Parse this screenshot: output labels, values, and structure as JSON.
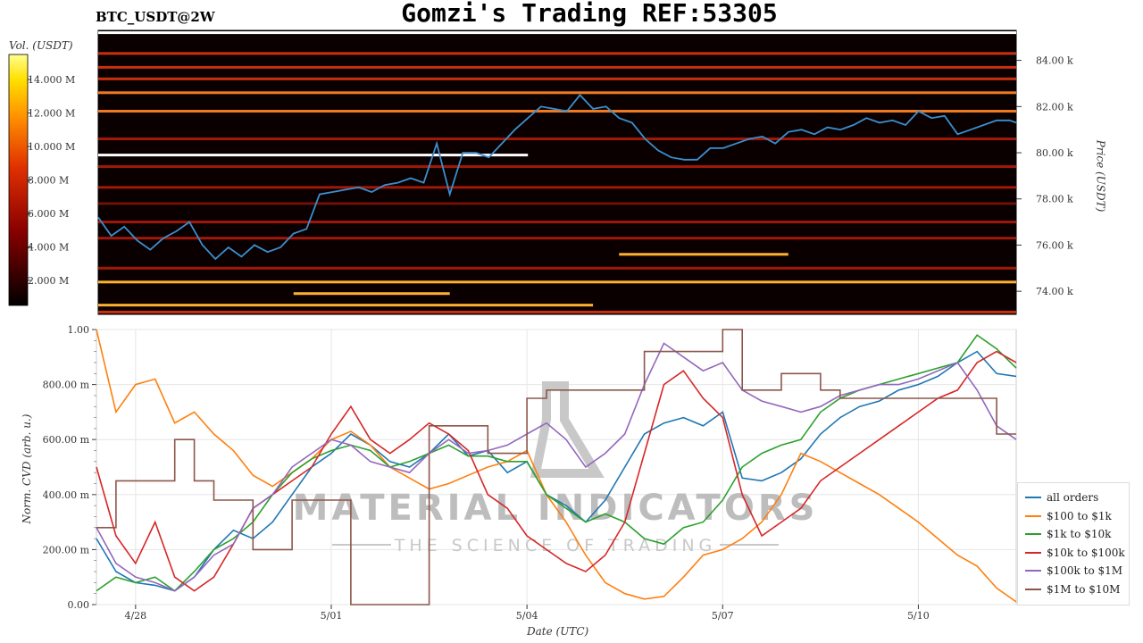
{
  "header": {
    "title": "Gomzi's Trading REF:53305",
    "symbol": "BTC_USDT@2W"
  },
  "colors": {
    "all_orders": "#1f77b4",
    "r100_1k": "#ff7f0e",
    "r1k_10k": "#2ca02c",
    "r10k_100k": "#d62728",
    "r100k_1m": "#9467bd",
    "r1m_10m": "#8c564b",
    "heatmap_low": "#000000",
    "heatmap_high": "#ffff80",
    "price_line": "#3a8fd0"
  },
  "watermark": {
    "main": "MATERIAL INDICATORS",
    "sub": "THE SCIENCE OF TRADING"
  },
  "chart_data": [
    {
      "type": "heatmap",
      "colorbar": {
        "label": "Vol. (USDT)",
        "ticks": [
          "14.000 M",
          "12.000 M",
          "10.000 M",
          "8.000 M",
          "6.000 M",
          "4.000 M",
          "2.000 M"
        ],
        "tick_values": [
          14,
          12,
          10,
          8,
          6,
          4,
          2
        ],
        "range": [
          0.5,
          15.5
        ]
      },
      "y_axis": {
        "label": "Price (USDT)",
        "ticks": [
          "84.00 k",
          "82.00 k",
          "80.00 k",
          "78.00 k",
          "76.00 k",
          "74.00 k"
        ],
        "tick_values": [
          84000,
          82000,
          80000,
          78000,
          76000,
          74000
        ],
        "ylim": [
          73000,
          85300
        ]
      },
      "x_range": [
        0,
        14.1
      ],
      "price_series": {
        "x": [
          0,
          0.2,
          0.4,
          0.6,
          0.8,
          1.0,
          1.2,
          1.4,
          1.6,
          1.8,
          2.0,
          2.2,
          2.4,
          2.6,
          2.8,
          3.0,
          3.2,
          3.4,
          3.6,
          3.8,
          4.0,
          4.2,
          4.4,
          4.6,
          4.8,
          5.0,
          5.2,
          5.4,
          5.6,
          5.8,
          6.0,
          6.2,
          6.4,
          6.6,
          6.8,
          7.0,
          7.2,
          7.4,
          7.6,
          7.8,
          8.0,
          8.2,
          8.4,
          8.6,
          8.8,
          9.0,
          9.2,
          9.4,
          9.6,
          9.8,
          10.0,
          10.2,
          10.4,
          10.6,
          10.8,
          11.0,
          11.2,
          11.4,
          11.6,
          11.8,
          12.0,
          12.2,
          12.4,
          12.6,
          12.8,
          13.0,
          13.2,
          13.4,
          13.6,
          13.8,
          14.0,
          14.1
        ],
        "y": [
          77200,
          76400,
          76800,
          76200,
          75800,
          76300,
          76600,
          77000,
          76000,
          75400,
          75900,
          75500,
          76000,
          75700,
          75900,
          76500,
          76700,
          78200,
          78300,
          78400,
          78500,
          78300,
          78600,
          78700,
          78900,
          78700,
          80400,
          78200,
          80000,
          80000,
          79800,
          80400,
          81000,
          81500,
          82000,
          81900,
          81800,
          82500,
          81900,
          82000,
          81500,
          81300,
          80600,
          80100,
          79800,
          79700,
          79700,
          80200,
          80200,
          80400,
          80600,
          80700,
          80400,
          80900,
          81000,
          80800,
          81100,
          81000,
          81200,
          81500,
          81300,
          81400,
          81200,
          81800,
          81500,
          81600,
          80800,
          81000,
          81200,
          81400,
          81400,
          81300
        ]
      },
      "level_bands": [
        {
          "price": 85200,
          "intensity": 1.0,
          "x0": 0,
          "x1": 14.1
        },
        {
          "price": 84300,
          "intensity": 0.5,
          "x0": 0,
          "x1": 14.1
        },
        {
          "price": 83700,
          "intensity": 0.55,
          "x0": 0,
          "x1": 14.1
        },
        {
          "price": 83200,
          "intensity": 0.5,
          "x0": 0,
          "x1": 14.1
        },
        {
          "price": 82600,
          "intensity": 0.7,
          "x0": 0,
          "x1": 14.1
        },
        {
          "price": 81800,
          "intensity": 0.75,
          "x0": 0,
          "x1": 14.1
        },
        {
          "price": 80600,
          "intensity": 0.45,
          "x0": 0,
          "x1": 14.1
        },
        {
          "price": 79900,
          "intensity": 1.0,
          "x0": 0,
          "x1": 6.6
        },
        {
          "price": 79400,
          "intensity": 0.4,
          "x0": 0,
          "x1": 14.1
        },
        {
          "price": 78500,
          "intensity": 0.45,
          "x0": 0,
          "x1": 14.1
        },
        {
          "price": 77800,
          "intensity": 0.35,
          "x0": 0,
          "x1": 14.1
        },
        {
          "price": 77000,
          "intensity": 0.4,
          "x0": 0,
          "x1": 14.1
        },
        {
          "price": 76300,
          "intensity": 0.45,
          "x0": 0,
          "x1": 14.1
        },
        {
          "price": 75600,
          "intensity": 0.8,
          "x0": 8.0,
          "x1": 10.6
        },
        {
          "price": 75000,
          "intensity": 0.45,
          "x0": 0,
          "x1": 14.1
        },
        {
          "price": 74400,
          "intensity": 0.85,
          "x0": 0,
          "x1": 14.1
        },
        {
          "price": 73900,
          "intensity": 0.8,
          "x0": 3.0,
          "x1": 5.4
        },
        {
          "price": 73400,
          "intensity": 0.85,
          "x0": 0,
          "x1": 7.6
        },
        {
          "price": 73100,
          "intensity": 0.5,
          "x0": 0,
          "x1": 14.1
        }
      ]
    },
    {
      "type": "line",
      "xlabel": "Date (UTC)",
      "ylabel": "Norm. CVD (arb. u.)",
      "x_ticks": [
        "4/28",
        "5/01",
        "5/04",
        "5/07",
        "5/10"
      ],
      "x_tick_values": [
        0.6,
        3.6,
        6.6,
        9.6,
        12.6
      ],
      "xlim": [
        0,
        14.1
      ],
      "y_ticks": [
        "1.00",
        "800.00 m",
        "600.00 m",
        "400.00 m",
        "200.00 m",
        "0.00"
      ],
      "y_tick_values": [
        1.0,
        0.8,
        0.6,
        0.4,
        0.2,
        0.0
      ],
      "ylim": [
        0,
        1.0
      ],
      "grid": true,
      "legend_position": "lower-right",
      "x": [
        0,
        0.3,
        0.6,
        0.9,
        1.2,
        1.5,
        1.8,
        2.1,
        2.4,
        2.7,
        3.0,
        3.3,
        3.6,
        3.9,
        4.2,
        4.5,
        4.8,
        5.1,
        5.4,
        5.7,
        6.0,
        6.3,
        6.6,
        6.9,
        7.2,
        7.5,
        7.8,
        8.1,
        8.4,
        8.7,
        9.0,
        9.3,
        9.6,
        9.9,
        10.2,
        10.5,
        10.8,
        11.1,
        11.4,
        11.7,
        12.0,
        12.3,
        12.6,
        12.9,
        13.2,
        13.5,
        13.8,
        14.1
      ],
      "series": [
        {
          "name": "all orders",
          "color_key": "all_orders",
          "values": [
            0.24,
            0.12,
            0.08,
            0.07,
            0.05,
            0.1,
            0.2,
            0.27,
            0.24,
            0.3,
            0.4,
            0.5,
            0.55,
            0.62,
            0.58,
            0.52,
            0.5,
            0.55,
            0.62,
            0.54,
            0.56,
            0.48,
            0.52,
            0.4,
            0.36,
            0.3,
            0.38,
            0.5,
            0.62,
            0.66,
            0.68,
            0.65,
            0.7,
            0.46,
            0.45,
            0.48,
            0.53,
            0.62,
            0.68,
            0.72,
            0.74,
            0.78,
            0.8,
            0.83,
            0.88,
            0.92,
            0.84,
            0.83
          ]
        },
        {
          "name": "$100 to $1k",
          "color_key": "r100_1k",
          "values": [
            1.0,
            0.7,
            0.8,
            0.82,
            0.66,
            0.7,
            0.62,
            0.56,
            0.47,
            0.43,
            0.48,
            0.53,
            0.6,
            0.63,
            0.58,
            0.5,
            0.46,
            0.42,
            0.44,
            0.47,
            0.5,
            0.52,
            0.56,
            0.4,
            0.3,
            0.18,
            0.08,
            0.04,
            0.02,
            0.03,
            0.1,
            0.18,
            0.2,
            0.24,
            0.3,
            0.4,
            0.55,
            0.52,
            0.48,
            0.44,
            0.4,
            0.35,
            0.3,
            0.24,
            0.18,
            0.14,
            0.06,
            0.01
          ]
        },
        {
          "name": "$1k to $10k",
          "color_key": "r1k_10k",
          "values": [
            0.05,
            0.1,
            0.08,
            0.1,
            0.05,
            0.12,
            0.2,
            0.24,
            0.3,
            0.4,
            0.48,
            0.53,
            0.56,
            0.58,
            0.56,
            0.5,
            0.52,
            0.55,
            0.58,
            0.54,
            0.54,
            0.52,
            0.52,
            0.4,
            0.35,
            0.3,
            0.33,
            0.3,
            0.24,
            0.22,
            0.28,
            0.3,
            0.38,
            0.5,
            0.55,
            0.58,
            0.6,
            0.7,
            0.75,
            0.78,
            0.8,
            0.82,
            0.84,
            0.86,
            0.88,
            0.98,
            0.93,
            0.86
          ]
        },
        {
          "name": "$10k to $100k",
          "color_key": "r10k_100k",
          "values": [
            0.5,
            0.25,
            0.15,
            0.3,
            0.1,
            0.05,
            0.1,
            0.22,
            0.35,
            0.4,
            0.45,
            0.5,
            0.62,
            0.72,
            0.6,
            0.55,
            0.6,
            0.66,
            0.62,
            0.56,
            0.4,
            0.35,
            0.25,
            0.2,
            0.15,
            0.12,
            0.18,
            0.3,
            0.55,
            0.8,
            0.85,
            0.75,
            0.68,
            0.4,
            0.25,
            0.3,
            0.35,
            0.45,
            0.5,
            0.55,
            0.6,
            0.65,
            0.7,
            0.75,
            0.78,
            0.88,
            0.92,
            0.88
          ]
        },
        {
          "name": "$100k to $1M",
          "color_key": "r100k_1m",
          "values": [
            0.28,
            0.15,
            0.1,
            0.08,
            0.05,
            0.1,
            0.18,
            0.22,
            0.35,
            0.4,
            0.5,
            0.55,
            0.6,
            0.58,
            0.52,
            0.5,
            0.48,
            0.55,
            0.6,
            0.55,
            0.56,
            0.58,
            0.62,
            0.66,
            0.6,
            0.5,
            0.55,
            0.62,
            0.8,
            0.95,
            0.9,
            0.85,
            0.88,
            0.78,
            0.74,
            0.72,
            0.7,
            0.72,
            0.76,
            0.78,
            0.8,
            0.8,
            0.82,
            0.85,
            0.88,
            0.78,
            0.65,
            0.6
          ]
        },
        {
          "name": "$1M to $10M",
          "color_key": "r1m_10m",
          "values": [
            0.28,
            0.45,
            0.45,
            0.45,
            0.6,
            0.45,
            0.38,
            0.38,
            0.2,
            0.2,
            0.38,
            0.38,
            0.38,
            0.0,
            0.0,
            0.0,
            0.0,
            0.65,
            0.65,
            0.65,
            0.55,
            0.55,
            0.75,
            0.78,
            0.78,
            0.78,
            0.78,
            0.78,
            0.92,
            0.92,
            0.92,
            0.92,
            1.0,
            0.78,
            0.78,
            0.84,
            0.84,
            0.78,
            0.75,
            0.75,
            0.75,
            0.75,
            0.75,
            0.75,
            0.75,
            0.75,
            0.62,
            0.62
          ]
        }
      ]
    }
  ]
}
